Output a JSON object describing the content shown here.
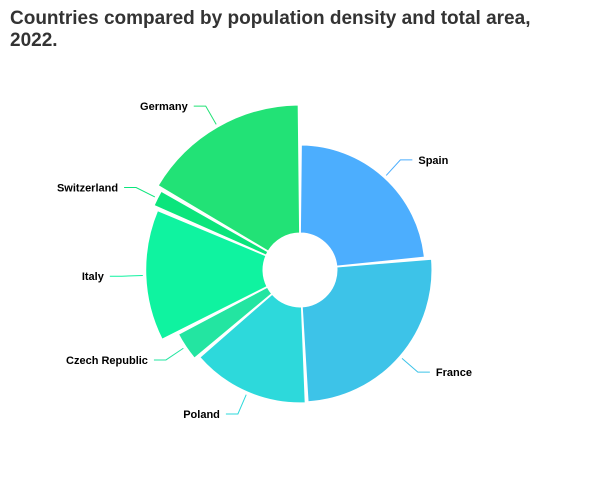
{
  "chart_data": {
    "type": "variable-radius-donut",
    "title": "Countries compared by population density and total area, 2022.",
    "series": [
      {
        "name": "Spain",
        "area_km2": 505370,
        "density": 94,
        "color": "#4caefe"
      },
      {
        "name": "France",
        "area_km2": 551500,
        "density": 118,
        "color": "#3dc3e8"
      },
      {
        "name": "Poland",
        "area_km2": 312679,
        "density": 121,
        "color": "#2dd9db"
      },
      {
        "name": "Czech Republic",
        "area_km2": 78865,
        "density": 137,
        "color": "#23e5a1"
      },
      {
        "name": "Italy",
        "area_km2": 301340,
        "density": 195,
        "color": "#0ff3a0"
      },
      {
        "name": "Switzerland",
        "area_km2": 41277,
        "density": 213,
        "color": "#0be57c"
      },
      {
        "name": "Germany",
        "area_km2": 357022,
        "density": 232,
        "color": "#22e276"
      }
    ]
  }
}
